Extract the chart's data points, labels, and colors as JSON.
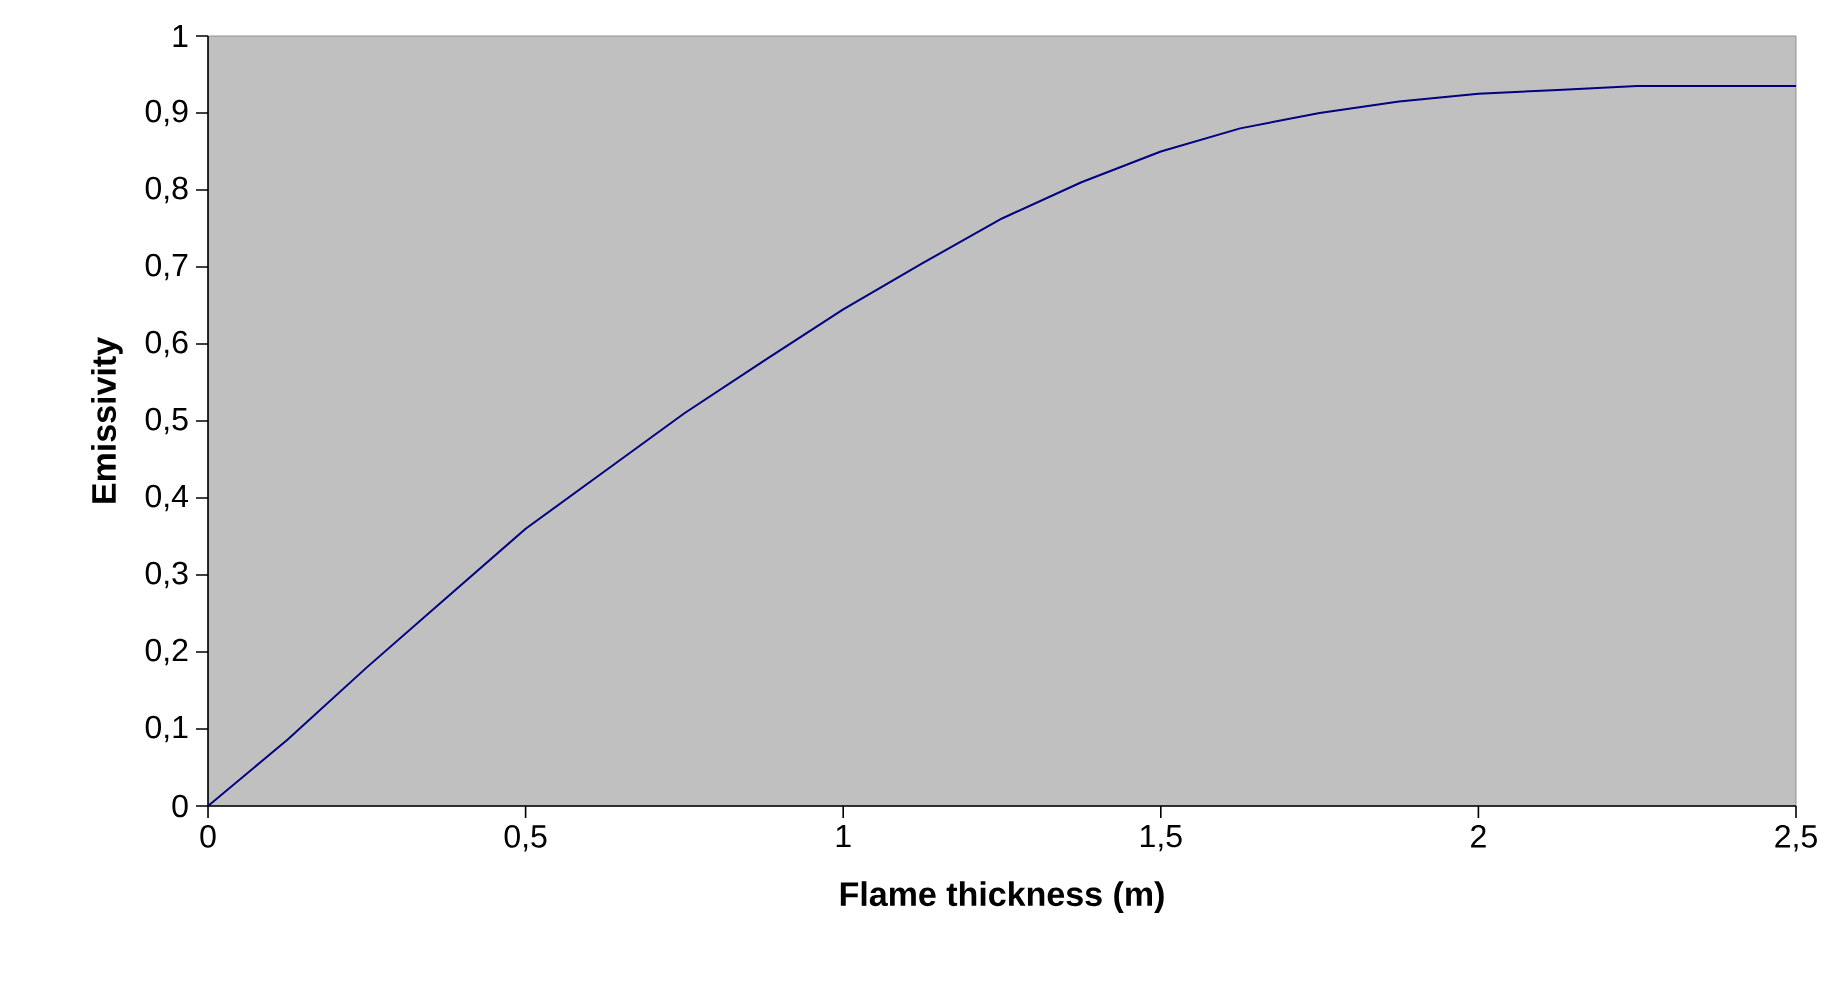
{
  "chart_data": {
    "type": "line",
    "xlabel": "Flame thickness (m)",
    "ylabel": "Emissivity",
    "color": "#000080",
    "x": [
      0,
      0.125,
      0.25,
      0.375,
      0.5,
      0.625,
      0.75,
      0.875,
      1.0,
      1.125,
      1.25,
      1.375,
      1.5,
      1.625,
      1.75,
      1.875,
      2.0,
      2.125,
      2.25,
      2.375,
      2.5
    ],
    "values": [
      0,
      0.086,
      0.18,
      0.27,
      0.36,
      0.435,
      0.51,
      0.578,
      0.645,
      0.705,
      0.763,
      0.81,
      0.85,
      0.88,
      0.9,
      0.915,
      0.925,
      0.93,
      0.935,
      0.935,
      0.935
    ],
    "xlim": [
      0,
      2.5
    ],
    "xticks": [
      0,
      {
        "value": 0.5,
        "label": "0,5"
      },
      1,
      {
        "value": 1.5,
        "label": "1,5"
      },
      2,
      {
        "value": 2.5,
        "label": "2,5"
      }
    ],
    "ylim": [
      0,
      1
    ],
    "yticks": [
      0,
      {
        "value": 0.1,
        "label": "0,1"
      },
      {
        "value": 0.2,
        "label": "0,2"
      },
      {
        "value": 0.3,
        "label": "0,3"
      },
      {
        "value": 0.4,
        "label": "0,4"
      },
      {
        "value": 0.5,
        "label": "0,5"
      },
      {
        "value": 0.6,
        "label": "0,6"
      },
      {
        "value": 0.7,
        "label": "0,7"
      },
      {
        "value": 0.8,
        "label": "0,8"
      },
      {
        "value": 0.9,
        "label": "0,9"
      },
      1
    ]
  }
}
